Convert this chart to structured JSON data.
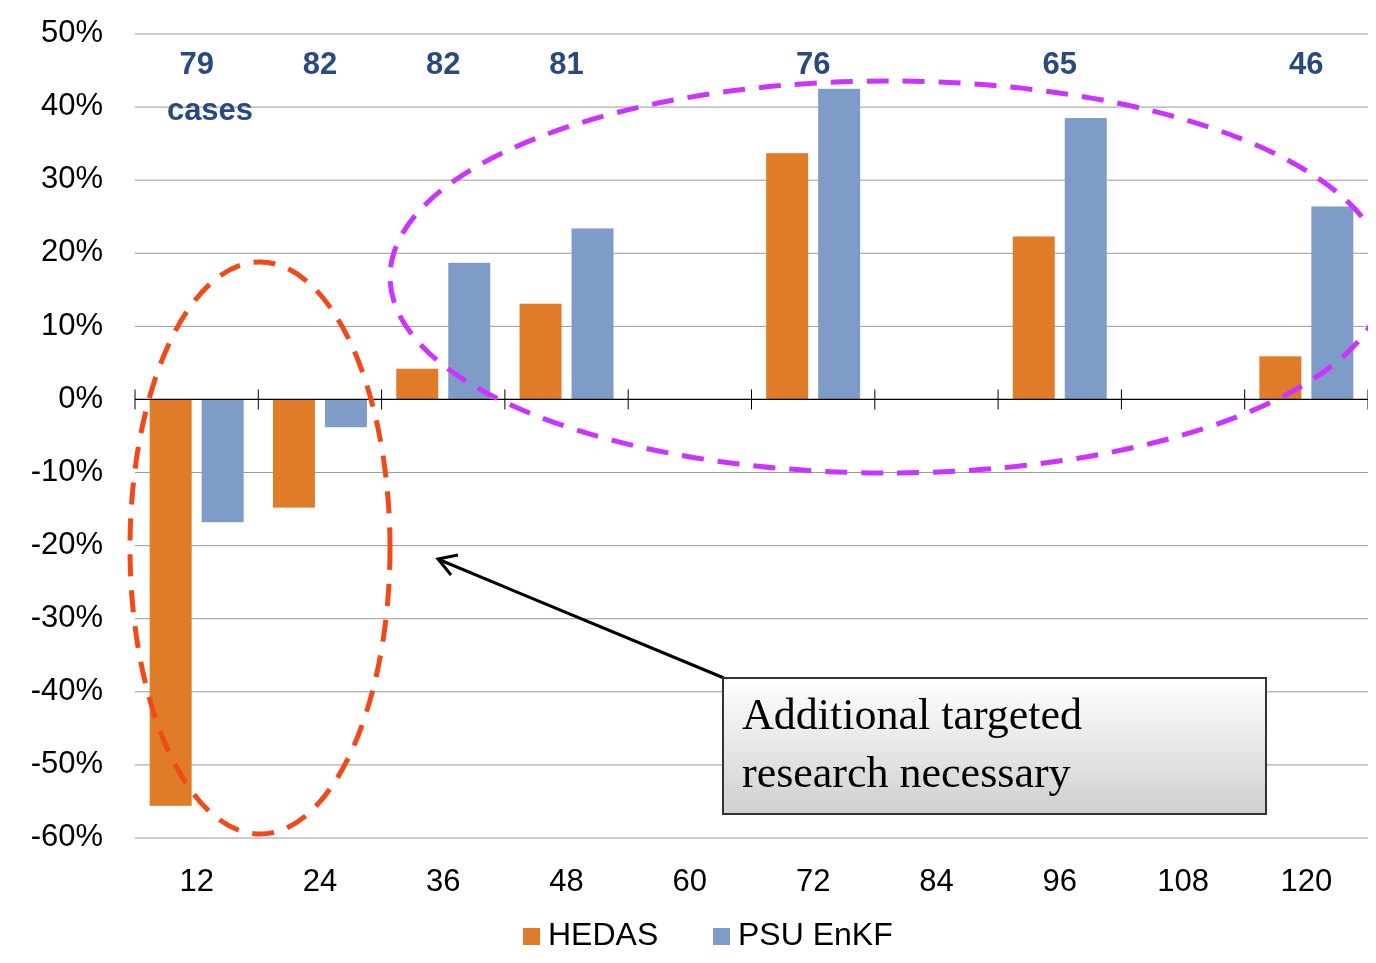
{
  "chart_data": {
    "type": "bar",
    "categories": [
      "12",
      "24",
      "36",
      "48",
      "60",
      "72",
      "84",
      "96",
      "108",
      "120"
    ],
    "series": [
      {
        "name": "HEDAS",
        "color": "#e07b28",
        "values": [
          -55.6,
          -14.8,
          4.2,
          13.1,
          null,
          33.7,
          null,
          22.3,
          null,
          5.9
        ]
      },
      {
        "name": "PSU EnKF",
        "color": "#7f9cc8",
        "values": [
          -16.8,
          -3.8,
          18.7,
          23.4,
          null,
          42.5,
          null,
          38.5,
          null,
          26.4
        ]
      }
    ],
    "ylim": [
      -60,
      50
    ],
    "yticks": [
      {
        "value": -60,
        "label": "-60%"
      },
      {
        "value": -50,
        "label": "-50%"
      },
      {
        "value": -40,
        "label": "-40%"
      },
      {
        "value": -30,
        "label": "-30%"
      },
      {
        "value": -20,
        "label": "-20%"
      },
      {
        "value": -10,
        "label": "-10%"
      },
      {
        "value": 0,
        "label": "0%"
      },
      {
        "value": 10,
        "label": "10%"
      },
      {
        "value": 20,
        "label": "20%"
      },
      {
        "value": 30,
        "label": "30%"
      },
      {
        "value": 40,
        "label": "40%"
      },
      {
        "value": 50,
        "label": "50%"
      }
    ],
    "grid": "y",
    "legend": "bottom",
    "annotations": [
      "79",
      "82",
      "82",
      "81",
      "76",
      "65",
      "46",
      "cases",
      "Additional targeted research necessary"
    ]
  }
}
